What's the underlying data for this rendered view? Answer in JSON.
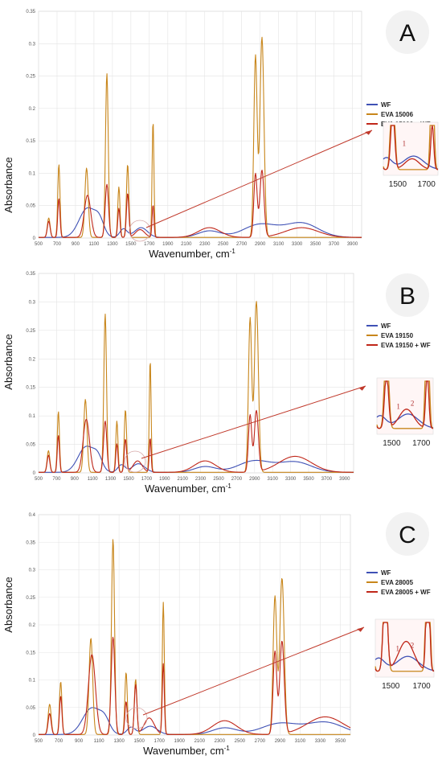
{
  "chart_data": [
    {
      "type": "line",
      "panel_label": "A",
      "xlabel": "Wavenumber, cm",
      "xlabel_sup": "-1",
      "ylabel": "Absorbance",
      "xlim": [
        500,
        4000
      ],
      "ylim": [
        0,
        0.35
      ],
      "xticks": [
        "500",
        "700",
        "900",
        "1100",
        "1300",
        "1500",
        "1700",
        "1900",
        "2100",
        "2300",
        "2500",
        "2700",
        "2900",
        "3100",
        "3300",
        "3500",
        "3700",
        "3900"
      ],
      "yticks": [
        "0",
        "0.05",
        "0.1",
        "0.15",
        "0.2",
        "0.25",
        "0.3",
        "0.35"
      ],
      "series": [
        {
          "name": "WF",
          "color": "#3f51b5",
          "peaks": [
            [
              1030,
              0.045,
              90
            ],
            [
              1160,
              0.02,
              50
            ],
            [
              1420,
              0.013,
              40
            ],
            [
              1610,
              0.015,
              70
            ],
            [
              2350,
              0.01,
              120
            ],
            [
              2900,
              0.02,
              180
            ],
            [
              3350,
              0.022,
              180
            ]
          ]
        },
        {
          "name": "EVA 15006",
          "color": "#c8861b",
          "peaks": [
            [
              610,
              0.03,
              15
            ],
            [
              720,
              0.113,
              12
            ],
            [
              1020,
              0.107,
              18
            ],
            [
              1240,
              0.253,
              15
            ],
            [
              1370,
              0.078,
              12
            ],
            [
              1465,
              0.113,
              13
            ],
            [
              1740,
              0.18,
              10
            ],
            [
              2850,
              0.28,
              18
            ],
            [
              2920,
              0.309,
              22
            ]
          ]
        },
        {
          "name": "EVA 15006 + WF",
          "color": "#c0271a",
          "peaks": [
            [
              610,
              0.025,
              15
            ],
            [
              720,
              0.06,
              12
            ],
            [
              1030,
              0.065,
              35
            ],
            [
              1240,
              0.082,
              18
            ],
            [
              1370,
              0.045,
              12
            ],
            [
              1465,
              0.068,
              13
            ],
            [
              1600,
              0.012,
              50
            ],
            [
              1740,
              0.05,
              10
            ],
            [
              2350,
              0.015,
              120
            ],
            [
              2850,
              0.098,
              18
            ],
            [
              2920,
              0.103,
              22
            ],
            [
              3350,
              0.015,
              180
            ]
          ]
        }
      ],
      "inset": {
        "xticks": [
          "1500",
          "1700"
        ],
        "band_labels": [
          "1"
        ]
      }
    },
    {
      "type": "line",
      "panel_label": "B",
      "xlabel": "Wavenumber, cm",
      "xlabel_sup": "-1",
      "ylabel": "Absorbance",
      "xlim": [
        500,
        4000
      ],
      "ylim": [
        0,
        0.35
      ],
      "xticks": [
        "500",
        "700",
        "900",
        "1100",
        "1300",
        "1500",
        "1700",
        "1900",
        "2100",
        "2300",
        "2500",
        "2700",
        "2900",
        "3100",
        "3300",
        "3500",
        "3700",
        "3900"
      ],
      "yticks": [
        "0",
        "0.05",
        "0.1",
        "0.15",
        "0.2",
        "0.25",
        "0.3",
        "0.35"
      ],
      "series": [
        {
          "name": "WF",
          "color": "#3f51b5",
          "peaks": [
            [
              1030,
              0.045,
              90
            ],
            [
              1160,
              0.02,
              50
            ],
            [
              1420,
              0.013,
              40
            ],
            [
              1610,
              0.015,
              70
            ],
            [
              2350,
              0.01,
              120
            ],
            [
              2900,
              0.02,
              180
            ],
            [
              3350,
              0.018,
              180
            ]
          ]
        },
        {
          "name": "EVA 19150",
          "color": "#c8861b",
          "peaks": [
            [
              610,
              0.038,
              15
            ],
            [
              720,
              0.107,
              12
            ],
            [
              1020,
              0.128,
              18
            ],
            [
              1240,
              0.278,
              15
            ],
            [
              1370,
              0.09,
              12
            ],
            [
              1465,
              0.11,
              13
            ],
            [
              1740,
              0.197,
              10
            ],
            [
              2850,
              0.27,
              18
            ],
            [
              2920,
              0.3,
              22
            ]
          ]
        },
        {
          "name": "EVA 19150 + WF",
          "color": "#c0271a",
          "peaks": [
            [
              610,
              0.03,
              15
            ],
            [
              720,
              0.065,
              12
            ],
            [
              1030,
              0.093,
              35
            ],
            [
              1240,
              0.09,
              18
            ],
            [
              1370,
              0.05,
              12
            ],
            [
              1465,
              0.058,
              13
            ],
            [
              1600,
              0.02,
              50
            ],
            [
              1740,
              0.06,
              10
            ],
            [
              2350,
              0.02,
              120
            ],
            [
              2850,
              0.1,
              18
            ],
            [
              2920,
              0.107,
              22
            ],
            [
              3350,
              0.028,
              180
            ]
          ]
        }
      ],
      "inset": {
        "xticks": [
          "1500",
          "1700"
        ],
        "band_labels": [
          "1",
          "2"
        ]
      }
    },
    {
      "type": "line",
      "panel_label": "C",
      "xlabel": "Wavenumber, cm",
      "xlabel_sup": "-1",
      "ylabel": "Absorbance",
      "xlim": [
        500,
        3600
      ],
      "ylim": [
        0,
        0.4
      ],
      "xticks": [
        "500",
        "700",
        "900",
        "1100",
        "1300",
        "1500",
        "1700",
        "1900",
        "2100",
        "2300",
        "2500",
        "2700",
        "2900",
        "3100",
        "3300",
        "3500"
      ],
      "yticks": [
        "0",
        "0.05",
        "0.1",
        "0.15",
        "0.2",
        "0.25",
        "0.3",
        "0.35",
        "0.4"
      ],
      "series": [
        {
          "name": "WF",
          "color": "#3f51b5",
          "peaks": [
            [
              1030,
              0.048,
              90
            ],
            [
              1160,
              0.02,
              50
            ],
            [
              1420,
              0.013,
              40
            ],
            [
              1610,
              0.015,
              70
            ],
            [
              2350,
              0.012,
              120
            ],
            [
              2900,
              0.02,
              180
            ],
            [
              3350,
              0.022,
              180
            ]
          ]
        },
        {
          "name": "EVA 28005",
          "color": "#c8861b",
          "peaks": [
            [
              610,
              0.055,
              15
            ],
            [
              720,
              0.096,
              12
            ],
            [
              1020,
              0.175,
              18
            ],
            [
              1240,
              0.355,
              15
            ],
            [
              1370,
              0.113,
              12
            ],
            [
              1465,
              0.1,
              13
            ],
            [
              1740,
              0.24,
              10
            ],
            [
              2850,
              0.25,
              18
            ],
            [
              2920,
              0.284,
              22
            ]
          ]
        },
        {
          "name": "EVA 28005 + WF",
          "color": "#c0271a",
          "peaks": [
            [
              610,
              0.038,
              15
            ],
            [
              720,
              0.07,
              12
            ],
            [
              1030,
              0.145,
              35
            ],
            [
              1240,
              0.177,
              18
            ],
            [
              1370,
              0.06,
              12
            ],
            [
              1465,
              0.09,
              13
            ],
            [
              1600,
              0.03,
              50
            ],
            [
              1740,
              0.128,
              10
            ],
            [
              2350,
              0.025,
              120
            ],
            [
              2850,
              0.15,
              18
            ],
            [
              2920,
              0.168,
              22
            ],
            [
              3350,
              0.032,
              180
            ]
          ]
        }
      ],
      "inset": {
        "xticks": [
          "1500",
          "1700"
        ],
        "band_labels": [
          "1",
          "2"
        ]
      }
    }
  ]
}
